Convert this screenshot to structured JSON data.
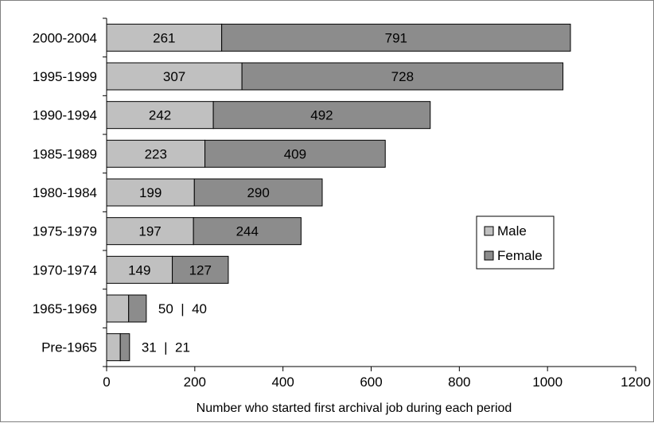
{
  "chart_data": {
    "type": "bar",
    "orientation": "horizontal",
    "stacked": true,
    "categories": [
      "2000-2004",
      "1995-1999",
      "1990-1994",
      "1985-1989",
      "1980-1984",
      "1975-1979",
      "1970-1974",
      "1965-1969",
      "Pre-1965"
    ],
    "series": [
      {
        "name": "Male",
        "values": [
          261,
          307,
          242,
          223,
          199,
          197,
          149,
          50,
          31
        ],
        "color": "#c0c0c0"
      },
      {
        "name": "Female",
        "values": [
          791,
          728,
          492,
          409,
          290,
          244,
          127,
          40,
          21
        ],
        "color": "#8c8c8c"
      }
    ],
    "outside_labels": [
      "50  |  40",
      "31  |  21"
    ],
    "xlabel": "Number who started first archival job during each period",
    "xlim": [
      0,
      1200
    ],
    "xticks": [
      "0",
      "200",
      "400",
      "600",
      "800",
      "1000",
      "1200"
    ],
    "grid": false,
    "legend_position": "right"
  }
}
